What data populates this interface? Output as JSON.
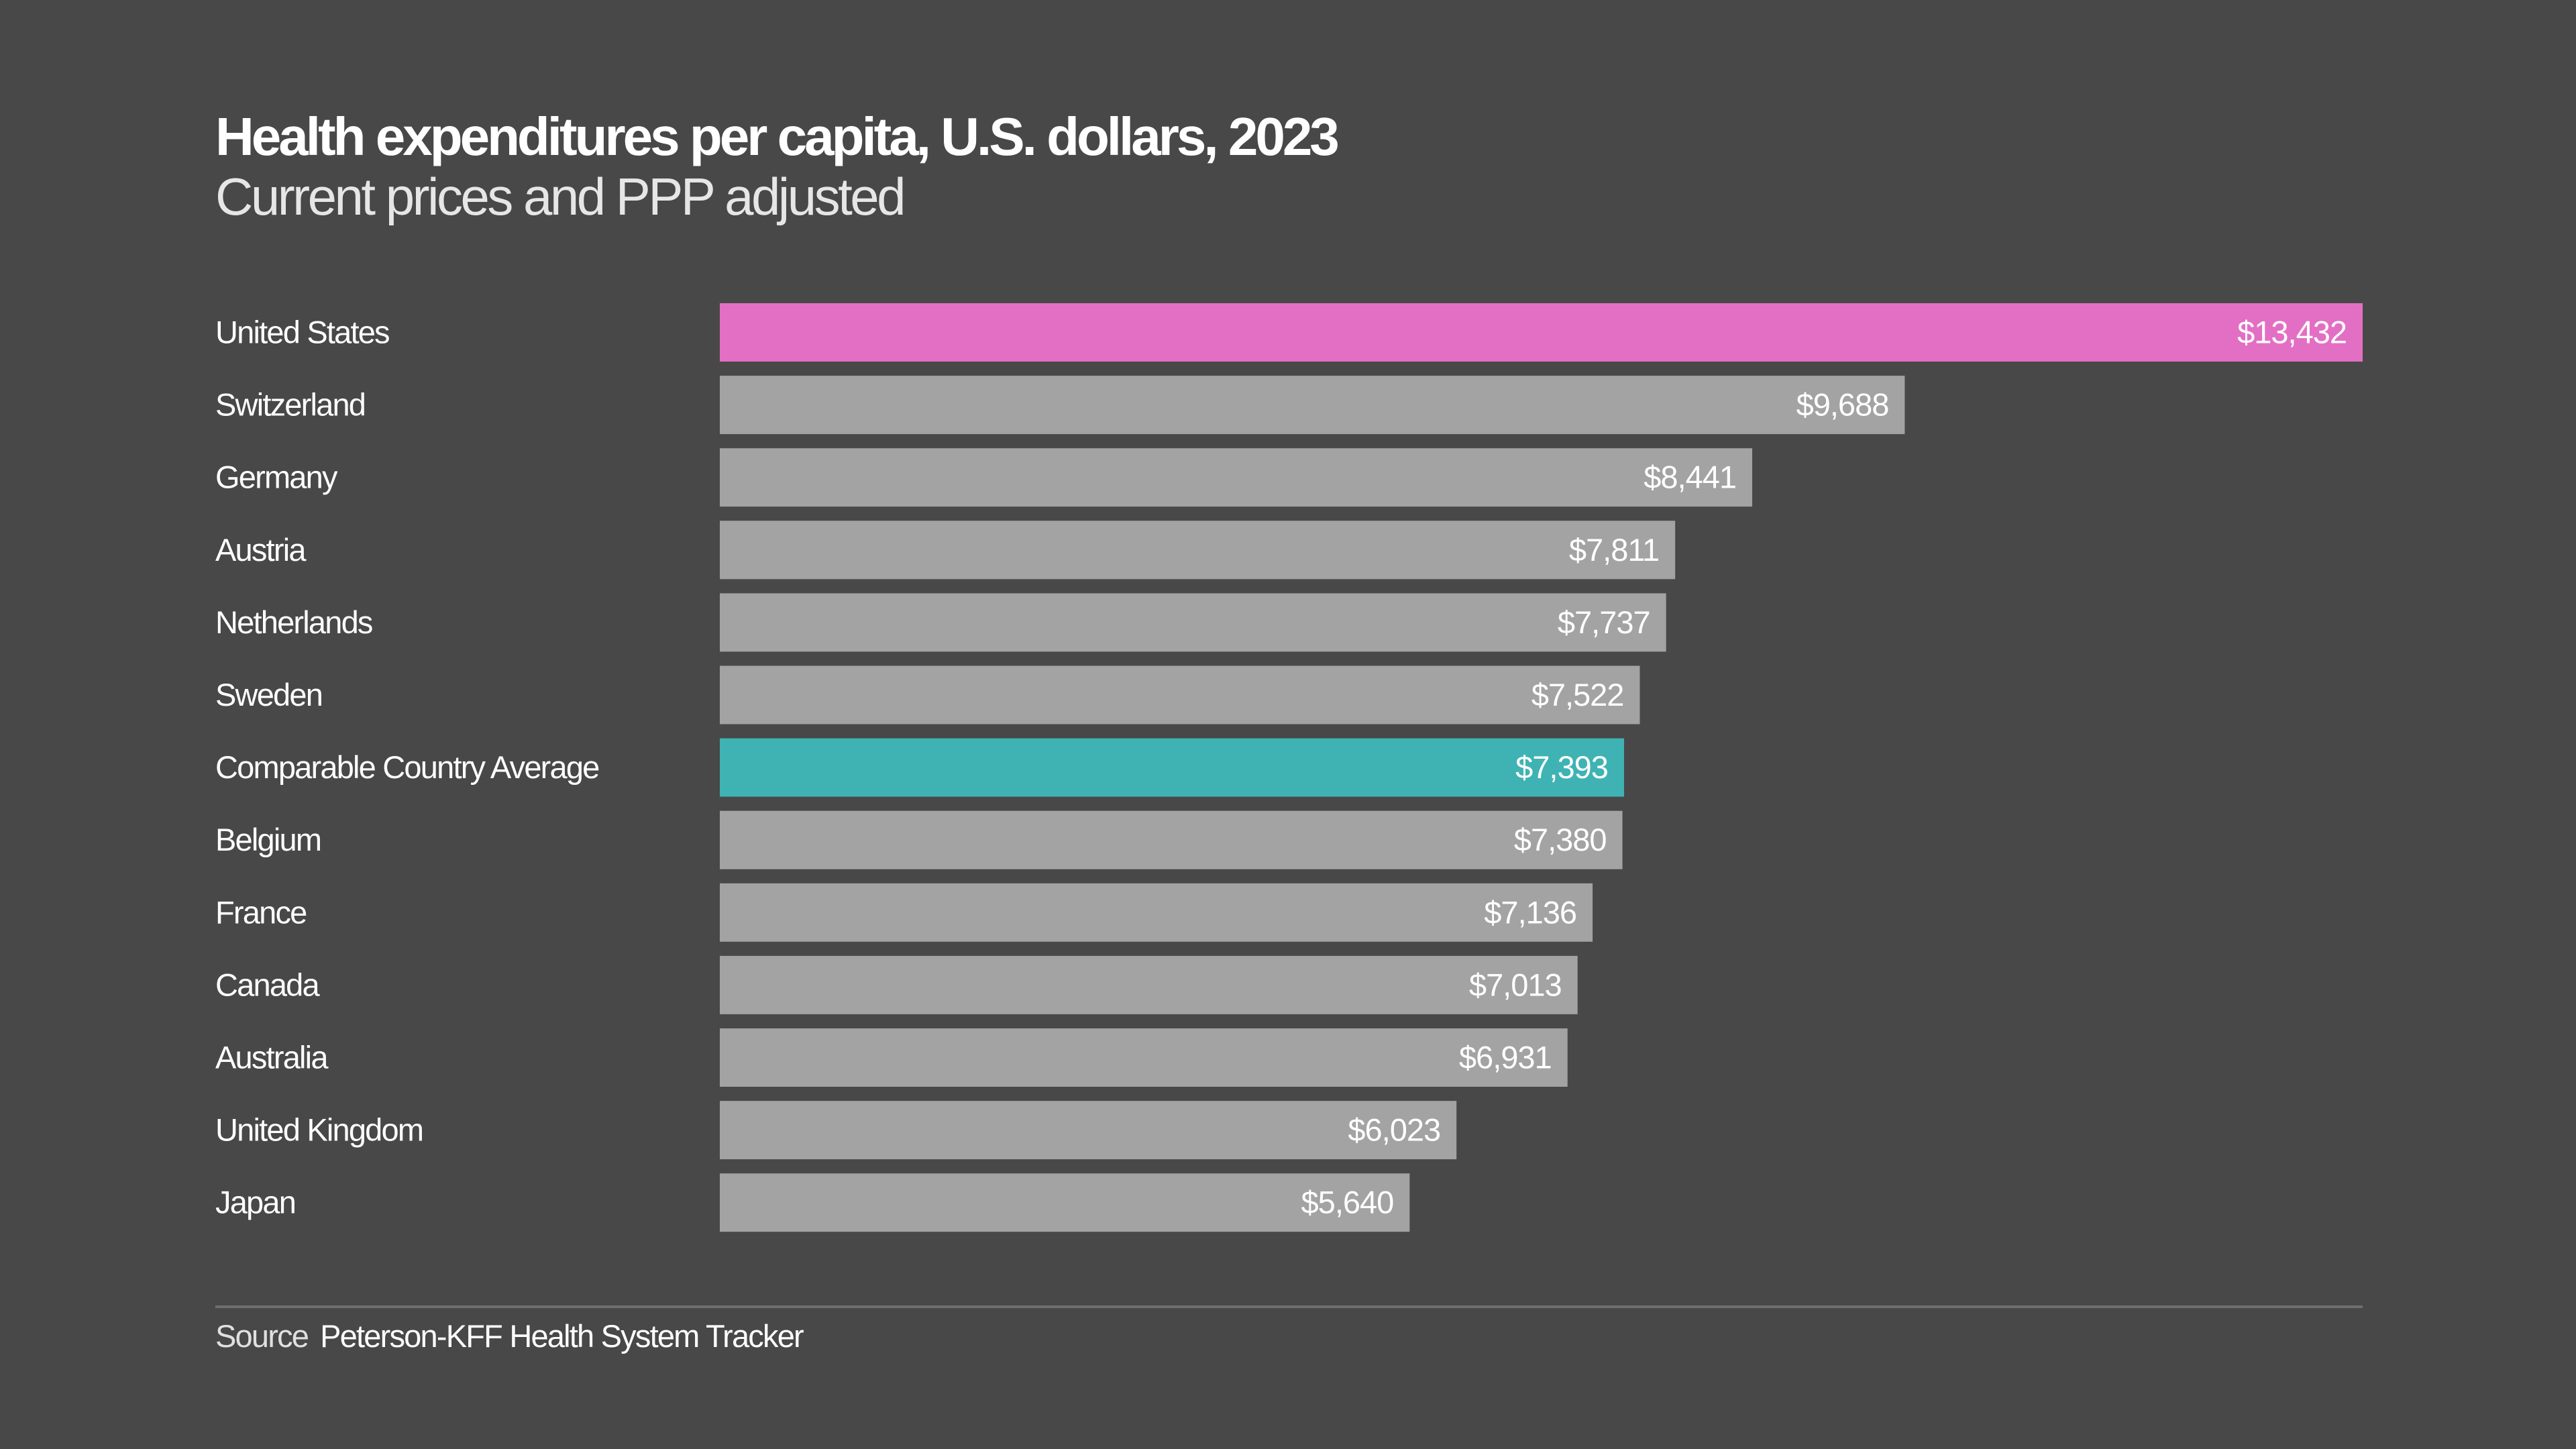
{
  "chart_data": {
    "type": "bar",
    "orientation": "horizontal",
    "title": "Health expenditures per capita, U.S. dollars, 2023",
    "subtitle": "Current prices and PPP adjusted",
    "categories": [
      "United States",
      "Switzerland",
      "Germany",
      "Austria",
      "Netherlands",
      "Sweden",
      "Comparable Country Average",
      "Belgium",
      "France",
      "Canada",
      "Australia",
      "United Kingdom",
      "Japan"
    ],
    "values": [
      13432,
      9688,
      8441,
      7811,
      7737,
      7522,
      7393,
      7380,
      7136,
      7013,
      6931,
      6023,
      5640
    ],
    "value_labels": [
      "$13,432",
      "$9,688",
      "$8,441",
      "$7,811",
      "$7,737",
      "$7,522",
      "$7,393",
      "$7,380",
      "$7,136",
      "$7,013",
      "$6,931",
      "$6,023",
      "$5,640"
    ],
    "xlim": [
      0,
      13432
    ],
    "grid": false,
    "colors": {
      "default": "#a3a3a3",
      "United States": "#e36fc4",
      "Comparable Country Average": "#3fb3b3"
    }
  },
  "source": {
    "label": "Source",
    "text": "Peterson-KFF Health System Tracker"
  },
  "colors": {
    "background": "#484848",
    "rule": "#6e6e6e"
  }
}
